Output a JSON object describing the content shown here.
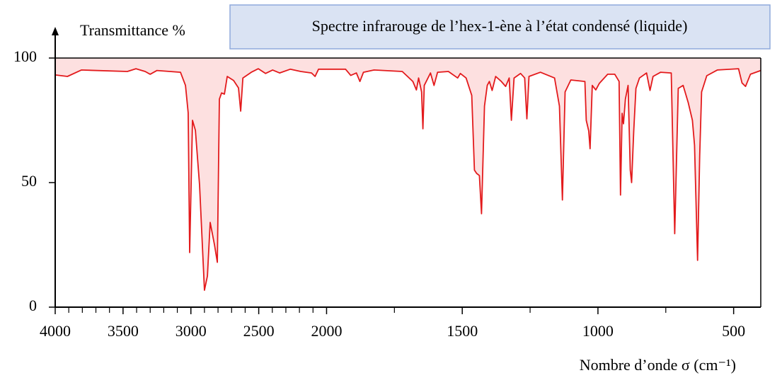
{
  "chart_data": {
    "type": "line",
    "title": "Spectre infrarouge de l’hex-1-ène à l’état condensé (liquide)",
    "ylabel": "Transmittance %",
    "xlabel": "Nombre d’onde σ (cm⁻¹)",
    "color": "#e31a1c",
    "fill_color": "#fde0e0",
    "xlim": [
      4000,
      400
    ],
    "x_scale_break": 2000,
    "xticks": [
      4000,
      3500,
      3000,
      2500,
      2000,
      1500,
      1000,
      500
    ],
    "xminorticks": [
      3900,
      3800,
      3700,
      3600,
      3400,
      3300,
      3200,
      3100,
      2900,
      2800,
      2700,
      2600,
      2400,
      2300,
      2200,
      2100,
      1750,
      1250,
      750
    ],
    "ylim": [
      0,
      100
    ],
    "yticks": [
      0,
      50,
      100
    ],
    "x": [
      4000,
      3910,
      3807,
      3468,
      3405,
      3337,
      3300,
      3250,
      3077,
      3040,
      3020,
      3009,
      2988,
      2967,
      2936,
      2900,
      2878,
      2858,
      2826,
      2805,
      2790,
      2774,
      2753,
      2732,
      2685,
      2649,
      2633,
      2617,
      2555,
      2503,
      2450,
      2398,
      2346,
      2268,
      2190,
      2111,
      2085,
      2059,
      1930,
      1911,
      1890,
      1877,
      1864,
      1825,
      1721,
      1682,
      1669,
      1661,
      1650,
      1645,
      1640,
      1617,
      1604,
      1591,
      1551,
      1517,
      1507,
      1486,
      1465,
      1455,
      1447,
      1437,
      1429,
      1418,
      1408,
      1400,
      1390,
      1377,
      1356,
      1340,
      1327,
      1319,
      1309,
      1285,
      1270,
      1262,
      1254,
      1212,
      1160,
      1142,
      1131,
      1121,
      1100,
      1048,
      1043,
      1034,
      1029,
      1021,
      1008,
      995,
      964,
      938,
      922,
      917,
      911,
      906,
      899,
      889,
      881,
      876,
      868,
      860,
      847,
      821,
      808,
      797,
      769,
      730,
      717,
      704,
      686,
      667,
      652,
      644,
      633,
      625,
      618,
      599,
      560,
      482,
      469,
      456,
      438,
      400
    ],
    "values": [
      93.2,
      92.6,
      95.2,
      94.6,
      95.7,
      94.6,
      93.5,
      95,
      94.3,
      89,
      78,
      21.9,
      75,
      71,
      49,
      6.8,
      12.5,
      34,
      25,
      18,
      83.5,
      86,
      85.5,
      92.6,
      91,
      88,
      78.7,
      92,
      94.3,
      95.7,
      93.8,
      95.2,
      94,
      95.5,
      94.6,
      94,
      92.6,
      95.5,
      95.5,
      93,
      94,
      90.6,
      94.3,
      95.2,
      94.6,
      90.6,
      87.2,
      92,
      86.4,
      71.6,
      89,
      94,
      89,
      94.3,
      94.6,
      92,
      93.8,
      92,
      85,
      55,
      53.7,
      52.8,
      37.5,
      80.7,
      89,
      90.6,
      87,
      92.6,
      90.6,
      88.6,
      92,
      75,
      92,
      93.8,
      92,
      75.6,
      92.6,
      94.3,
      92,
      80.7,
      43,
      86.4,
      91.2,
      90.6,
      75,
      70.7,
      63.6,
      89,
      87.2,
      89.8,
      93.5,
      93.5,
      90.6,
      45,
      77.8,
      73.6,
      83.5,
      89,
      55,
      50,
      70.7,
      87.8,
      92,
      94,
      87,
      92.6,
      94.3,
      94,
      29.5,
      87.8,
      89,
      82,
      75,
      65,
      18.8,
      60.8,
      86.4,
      92.9,
      95.2,
      95.7,
      90,
      88.6,
      93.5,
      95
    ]
  }
}
